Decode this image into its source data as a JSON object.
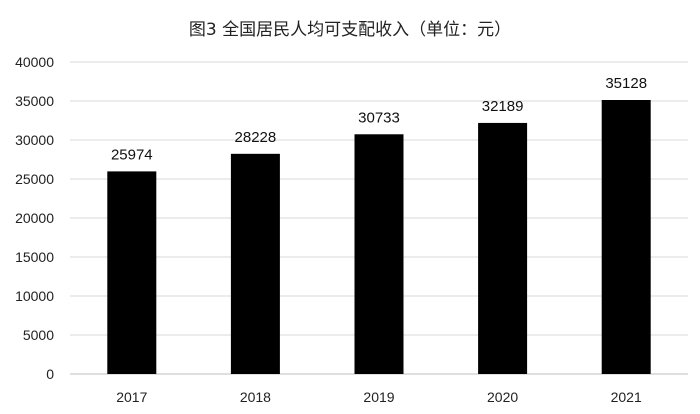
{
  "chart_data": {
    "type": "bar",
    "title": "图3 全国居民人均可支配收入（单位：元）",
    "categories": [
      "2017",
      "2018",
      "2019",
      "2020",
      "2021"
    ],
    "values": [
      25974,
      28228,
      30733,
      32189,
      35128
    ],
    "data_labels": [
      "25974",
      "28228",
      "30733",
      "32189",
      "35128"
    ],
    "yticks": [
      "0",
      "5000",
      "10000",
      "15000",
      "20000",
      "25000",
      "30000",
      "35000",
      "40000"
    ],
    "ylim": [
      0,
      40000
    ],
    "xlabel": "",
    "ylabel": "",
    "grid": true,
    "legend": "none",
    "colors": {
      "bar": "#000000",
      "grid": "#d9d9d9",
      "axis": "#bfbfbf"
    }
  }
}
